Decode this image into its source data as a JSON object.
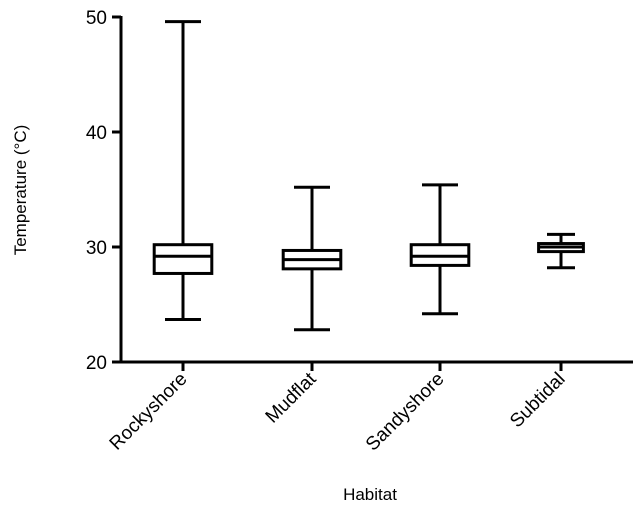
{
  "chart_data": {
    "type": "box",
    "xlabel": "Habitat",
    "ylabel": "Temperature (°C)",
    "ylim": [
      20,
      50
    ],
    "yticks": [
      20,
      30,
      40,
      50
    ],
    "grid": false,
    "categories": [
      "Rockyshore",
      "Mudflat",
      "Sandyshore",
      "Subtidal"
    ],
    "boxes": [
      {
        "category": "Rockyshore",
        "min": 23.7,
        "q1": 27.7,
        "median": 29.2,
        "q3": 30.2,
        "max": 49.6
      },
      {
        "category": "Mudflat",
        "min": 22.8,
        "q1": 28.1,
        "median": 28.9,
        "q3": 29.7,
        "max": 35.2
      },
      {
        "category": "Sandyshore",
        "min": 24.2,
        "q1": 28.4,
        "median": 29.2,
        "q3": 30.2,
        "max": 35.4
      },
      {
        "category": "Subtidal",
        "min": 28.2,
        "q1": 29.6,
        "median": 30.0,
        "q3": 30.3,
        "max": 31.1
      }
    ]
  }
}
